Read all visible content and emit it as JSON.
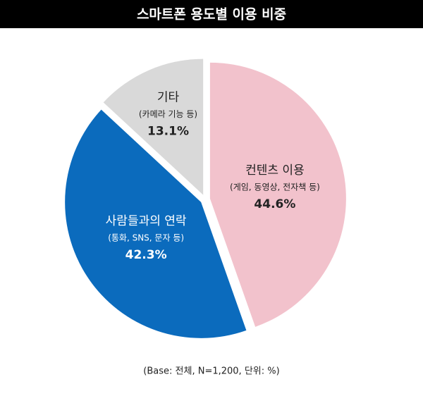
{
  "chart_data": {
    "type": "pie",
    "title": "스마트폰 용도별 이용 비중",
    "categories": [
      "컨텐츠 이용",
      "사람들과의 연락",
      "기타"
    ],
    "details": [
      "(게임, 동영상, 전자책 등)",
      "(통화, SNS, 문자 등)",
      "(카메라 기능 등)"
    ],
    "values": [
      44.6,
      42.3,
      13.1
    ],
    "value_labels": [
      "44.6%",
      "42.3%",
      "13.1%"
    ],
    "colors": [
      "#f2c2cc",
      "#0b6bbd",
      "#d9d9d9"
    ],
    "note": "(Base: 전체, N=1,200, 단위: %)"
  }
}
